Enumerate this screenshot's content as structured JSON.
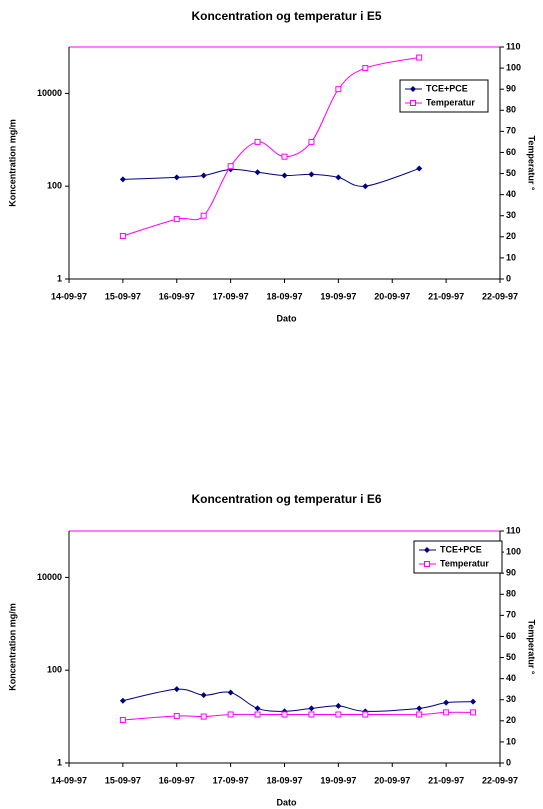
{
  "chart_data": [
    {
      "type": "line",
      "title": "Koncentration og temperatur i E5",
      "xlabel": "Dato",
      "ylabel": "Koncentration mg/m",
      "y2label": "Temperatur °",
      "log_y": true,
      "legend": "upper right",
      "xlim": [
        14,
        22
      ],
      "xticks": [
        {
          "value": 14,
          "label": "14-09-97"
        },
        {
          "value": 15,
          "label": "15-09-97"
        },
        {
          "value": 16,
          "label": "16-09-97"
        },
        {
          "value": 17,
          "label": "17-09-97"
        },
        {
          "value": 18,
          "label": "18-09-97"
        },
        {
          "value": 19,
          "label": "19-09-97"
        },
        {
          "value": 20,
          "label": "20-09-97"
        },
        {
          "value": 21,
          "label": "21-09-97"
        },
        {
          "value": 22,
          "label": "22-09-97"
        }
      ],
      "ylim": [
        1,
        100000
      ],
      "yticks": [
        1,
        100,
        10000
      ],
      "y2lim": [
        0,
        110
      ],
      "y2ticks": [
        0,
        10,
        20,
        30,
        40,
        50,
        60,
        70,
        80,
        90,
        100,
        110
      ],
      "x": [
        15,
        16,
        16.5,
        17,
        17.5,
        18,
        18.5,
        19,
        19.5,
        20.5
      ],
      "series": [
        {
          "name": "TCE+PCE",
          "color": "#000080",
          "marker": "diamond",
          "values": [
            140,
            155,
            170,
            230,
            200,
            170,
            180,
            155,
            100,
            240
          ]
        },
        {
          "name": "Temperatur",
          "color": "#ff00ff",
          "marker": "square",
          "axis": "y2",
          "values": [
            20.4,
            28.4,
            30,
            53.5,
            65,
            58,
            65,
            90,
            100,
            105
          ]
        }
      ]
    },
    {
      "type": "line",
      "title": "Koncentration og temperatur i E6",
      "xlabel": "Dato",
      "ylabel": "Koncentration mg/m",
      "y2label": "Temperatur °",
      "log_y": true,
      "legend": "upper right",
      "xlim": [
        14,
        22
      ],
      "xticks": [
        {
          "value": 14,
          "label": "14-09-97"
        },
        {
          "value": 15,
          "label": "15-09-97"
        },
        {
          "value": 16,
          "label": "16-09-97"
        },
        {
          "value": 17,
          "label": "17-09-97"
        },
        {
          "value": 18,
          "label": "18-09-97"
        },
        {
          "value": 19,
          "label": "19-09-97"
        },
        {
          "value": 20,
          "label": "20-09-97"
        },
        {
          "value": 21,
          "label": "21-09-97"
        },
        {
          "value": 22,
          "label": "22-09-97"
        }
      ],
      "ylim": [
        1,
        100000
      ],
      "yticks": [
        1,
        100,
        10000
      ],
      "y2lim": [
        0,
        110
      ],
      "y2ticks": [
        0,
        10,
        20,
        30,
        40,
        50,
        60,
        70,
        80,
        90,
        100,
        110
      ],
      "x": [
        15,
        16,
        16.5,
        17,
        17.5,
        18,
        18.5,
        19,
        19.5,
        20.5,
        21,
        21.5
      ],
      "series": [
        {
          "name": "TCE+PCE",
          "color": "#000080",
          "marker": "diamond",
          "values": [
            22,
            39,
            29,
            33,
            15,
            13,
            15,
            17,
            13,
            15,
            20,
            21
          ]
        },
        {
          "name": "Temperatur",
          "color": "#ff00ff",
          "marker": "square",
          "axis": "y2",
          "values": [
            20.4,
            22.3,
            22,
            23,
            23,
            23,
            23,
            23,
            23,
            23,
            24,
            24
          ]
        }
      ]
    }
  ]
}
